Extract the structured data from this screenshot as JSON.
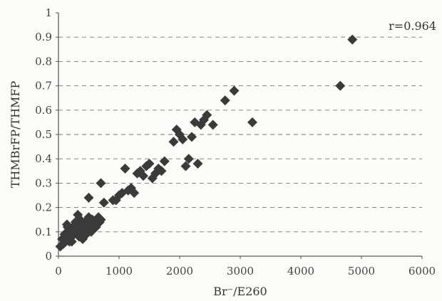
{
  "chart_data": {
    "type": "scatter",
    "title": "",
    "xlabel": "Br⁻/E260",
    "ylabel": "THMBrFP/THMFP",
    "xlim": [
      0,
      6000
    ],
    "ylim": [
      0,
      1
    ],
    "x_ticks": [
      "0",
      "1000",
      "2000",
      "3000",
      "4000",
      "5000",
      "6000"
    ],
    "y_ticks": [
      "0",
      "0.1",
      "0.2",
      "0.3",
      "0.4",
      "0.5",
      "0.6",
      "0.7",
      "0.8",
      "0.9",
      "1"
    ],
    "grid": "horizontal-dashed",
    "annotation": "r=0.964",
    "marker": "diamond",
    "marker_color": "#3a3a3a",
    "series": [
      {
        "x": [
          30,
          60,
          80,
          100,
          120,
          140,
          160,
          180,
          200,
          220,
          240,
          260,
          280,
          300,
          320,
          340,
          360,
          380,
          400,
          420,
          440,
          460,
          480,
          500,
          520,
          540,
          560,
          580,
          600,
          620,
          640,
          660,
          680,
          700,
          150,
          180,
          250,
          300,
          350,
          400,
          450,
          500,
          550,
          700,
          750,
          900,
          950,
          1000,
          1050,
          1100,
          1150,
          1200,
          1250,
          1300,
          1350,
          1400,
          1450,
          1500,
          1550,
          1600,
          1650,
          1700,
          1750,
          1900,
          1950,
          2000,
          2050,
          2100,
          2150,
          2200,
          2250,
          2300,
          2350,
          2400,
          2450,
          2550,
          2750,
          2900,
          3200,
          4650,
          4850
        ],
        "y": [
          0.04,
          0.07,
          0.05,
          0.09,
          0.06,
          0.13,
          0.08,
          0.11,
          0.1,
          0.06,
          0.12,
          0.09,
          0.14,
          0.1,
          0.17,
          0.08,
          0.15,
          0.12,
          0.07,
          0.11,
          0.14,
          0.09,
          0.13,
          0.16,
          0.12,
          0.1,
          0.15,
          0.13,
          0.14,
          0.12,
          0.15,
          0.16,
          0.14,
          0.15,
          0.12,
          0.06,
          0.1,
          0.11,
          0.13,
          0.09,
          0.12,
          0.24,
          0.15,
          0.3,
          0.22,
          0.23,
          0.23,
          0.25,
          0.26,
          0.36,
          0.27,
          0.28,
          0.26,
          0.34,
          0.35,
          0.33,
          0.37,
          0.38,
          0.32,
          0.34,
          0.36,
          0.35,
          0.39,
          0.47,
          0.52,
          0.5,
          0.48,
          0.37,
          0.4,
          0.49,
          0.55,
          0.38,
          0.54,
          0.56,
          0.58,
          0.54,
          0.64,
          0.68,
          0.55,
          0.7,
          0.89
        ]
      }
    ]
  }
}
